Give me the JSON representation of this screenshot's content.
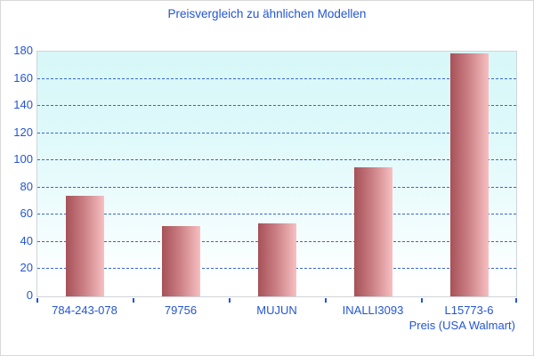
{
  "chart_data": {
    "type": "bar",
    "title": "Preisvergleich zu ähnlichen Modellen",
    "categories": [
      "784-243-078",
      "79756",
      "MUJUN",
      "INALLI3093",
      "L15773-6"
    ],
    "values": [
      74,
      52,
      54,
      95,
      179
    ],
    "xlabel": "Preis (USA Walmart)",
    "ylabel": "",
    "ylim": [
      0,
      180
    ],
    "ytick_step": 20,
    "grid": "horizontal-dashed",
    "legend": "none",
    "colors": {
      "title_text": "#2355d4",
      "axis_text": "#2355d4",
      "gridline": "#3a67cf",
      "tick": "#2355d4",
      "plot_border": "#cfd4da",
      "plot_bg_top": "#d7f7f8",
      "plot_bg_bottom": "#ffffff",
      "bar_gradient_left": "#a65158",
      "bar_gradient_right": "#f7bfc1",
      "frame_border": "#d8d8d8",
      "background": "#ffffff"
    }
  }
}
